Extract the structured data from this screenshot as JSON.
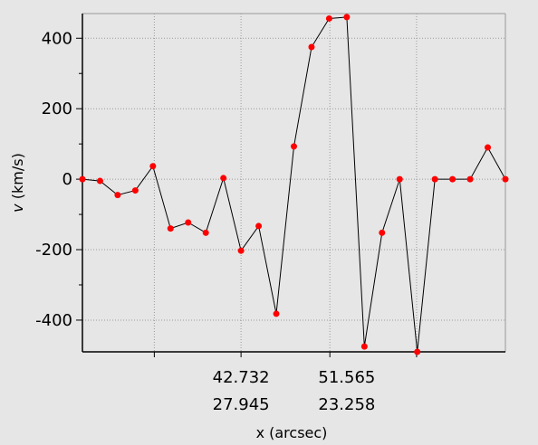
{
  "chart_data": {
    "type": "line",
    "title": "",
    "xlabel": "x (arcsec)",
    "ylabel": "v (km/s)",
    "ylabel_parts": {
      "symbol": "v",
      "unit": "(km/s)"
    },
    "ylim": [
      -490,
      470
    ],
    "yticks": [
      -400,
      -200,
      0,
      200,
      400
    ],
    "y_tick_labels": [
      "-400",
      "-200",
      "0",
      "200",
      "400"
    ],
    "x_tick_labels": [
      {
        "row1": "42.732",
        "row2": "27.945"
      },
      {
        "row1": "51.565",
        "row2": "23.258"
      }
    ],
    "x_tick_index": [
      9,
      15
    ],
    "grid": true,
    "legend": "none",
    "colors": {
      "line": "#000000",
      "marker": "#ff0000",
      "grid": "#9a9a9a",
      "background": "#e6e6e6"
    },
    "series": [
      {
        "values": [
          0,
          -5,
          -45,
          -32,
          37,
          -140,
          -123,
          -152,
          3,
          -203,
          -133,
          -382,
          93,
          375,
          456,
          460,
          -475,
          -152,
          0,
          -490,
          0,
          0,
          0,
          90,
          0
        ]
      }
    ]
  }
}
